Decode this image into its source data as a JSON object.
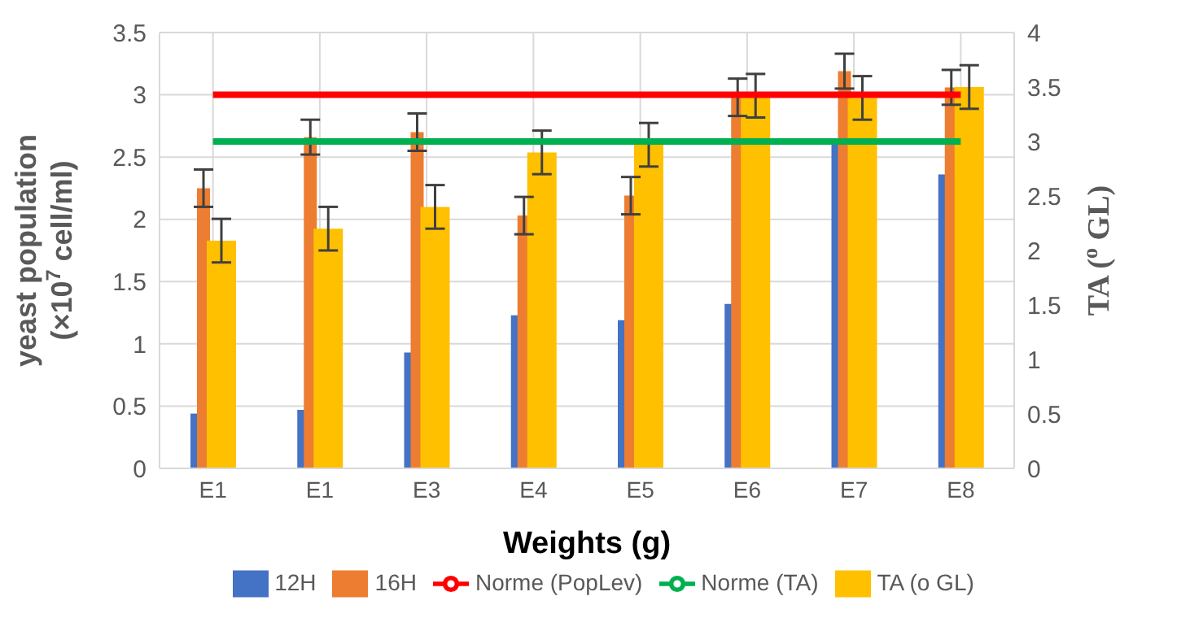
{
  "chart_data": {
    "type": "bar",
    "xlabel": "Weights (g)",
    "ylabel": "yeast population (×10$^{7}$ cell/ml)",
    "y2label": "TA ($^{o}$ GL)",
    "categories": [
      "E1",
      "E1",
      "E3",
      "E4",
      "E5",
      "E6",
      "E7",
      "E8"
    ],
    "series": [
      {
        "name": "12H",
        "color": "#4472c4",
        "values": [
          0.44,
          0.47,
          0.93,
          1.23,
          1.19,
          1.32,
          2.6,
          2.36
        ]
      },
      {
        "name": "16H",
        "color": "#ed7d31",
        "values": [
          2.25,
          2.66,
          2.7,
          2.03,
          2.19,
          2.98,
          3.19,
          3.06
        ],
        "errors": [
          0.15,
          0.14,
          0.15,
          0.15,
          0.15,
          0.15,
          0.14,
          0.14
        ]
      },
      {
        "name": "TA (o GL)",
        "color": "#ffc000",
        "axis": "y2",
        "values": [
          2.09,
          2.2,
          2.4,
          2.9,
          2.97,
          3.42,
          3.4,
          3.5
        ],
        "errors": [
          0.2,
          0.2,
          0.2,
          0.2,
          0.2,
          0.2,
          0.2,
          0.2
        ]
      },
      {
        "name": "Norme (PopLev)",
        "type": "line",
        "color": "#ff0000",
        "values": [
          3,
          3,
          3,
          3,
          3,
          3,
          3,
          3
        ]
      },
      {
        "name": "Norme (TA)",
        "type": "line",
        "color": "#00b050",
        "axis": "y2",
        "values": [
          3,
          3,
          3,
          3,
          3,
          3,
          3,
          3
        ]
      }
    ],
    "ylim": [
      0,
      3.5
    ],
    "yticks": [
      0,
      0.5,
      1,
      1.5,
      2,
      2.5,
      3,
      3.5
    ],
    "y2lim": [
      0,
      4
    ],
    "y2ticks": [
      0,
      0.5,
      1,
      1.5,
      2,
      2.5,
      3,
      3.5,
      4
    ],
    "grid": true,
    "legend": "bottom",
    "marker": "none"
  }
}
